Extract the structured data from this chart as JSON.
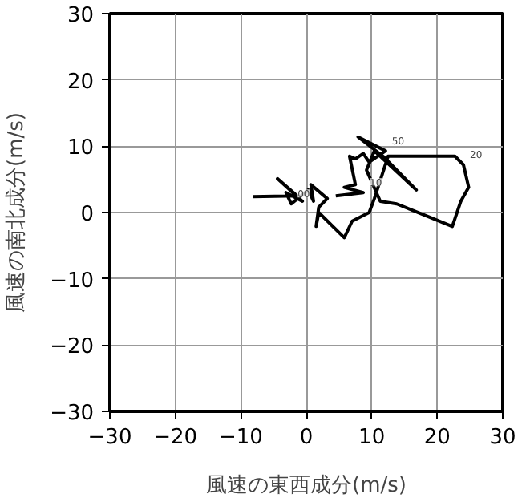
{
  "chart_data": {
    "type": "line",
    "xlabel": "風速の東西成分(m/s)",
    "ylabel": "風速の南北成分(m/s)",
    "xlim": [
      -30,
      30
    ],
    "ylim": [
      -30,
      30
    ],
    "xticks": [
      -30,
      -20,
      -10,
      0,
      10,
      20,
      30
    ],
    "yticks": [
      -30,
      -20,
      -10,
      0,
      10,
      20,
      30
    ],
    "grid": true,
    "marker": "none",
    "line_style": "solid",
    "series": [
      {
        "color": "#000000",
        "x": [
          -8.2,
          -1.4,
          -4.4,
          -0.6,
          -3.1,
          -2.3,
          0.3,
          1.1,
          0.7,
          3.2,
          1.9,
          1.5,
          1.9,
          5.8,
          7.0,
          9.6,
          10.4,
          12.5,
          17.2,
          22.7,
          24.0,
          24.8,
          23.6,
          22.3,
          18.1,
          13.8,
          11.3,
          9.2,
          10.4,
          16.8,
          11.7,
          7.9,
          12.1,
          9.6,
          8.7,
          7.5,
          6.6,
          7.5,
          5.8,
          8.7,
          4.5
        ],
        "values": [
          2.4,
          2.5,
          5.1,
          1.7,
          3.0,
          1.3,
          3.4,
          1.7,
          4.2,
          2.1,
          0.8,
          -2.1,
          0.0,
          -3.8,
          -1.3,
          0.0,
          2.1,
          8.5,
          8.5,
          8.5,
          7.2,
          3.8,
          1.7,
          -2.1,
          -0.4,
          1.3,
          1.7,
          6.4,
          9.3,
          3.4,
          8.5,
          11.4,
          9.3,
          7.6,
          8.9,
          8.1,
          8.5,
          4.2,
          3.8,
          3.0,
          2.5
        ]
      }
    ],
    "annotations": [
      {
        "text": "50",
        "x": 12.1,
        "y": 9.3
      },
      {
        "text": "20",
        "x": 24.0,
        "y": 7.2
      },
      {
        "text": "10",
        "x": 8.7,
        "y": 3.0
      },
      {
        "text": "00",
        "x": -2.3,
        "y": 1.3
      }
    ]
  }
}
